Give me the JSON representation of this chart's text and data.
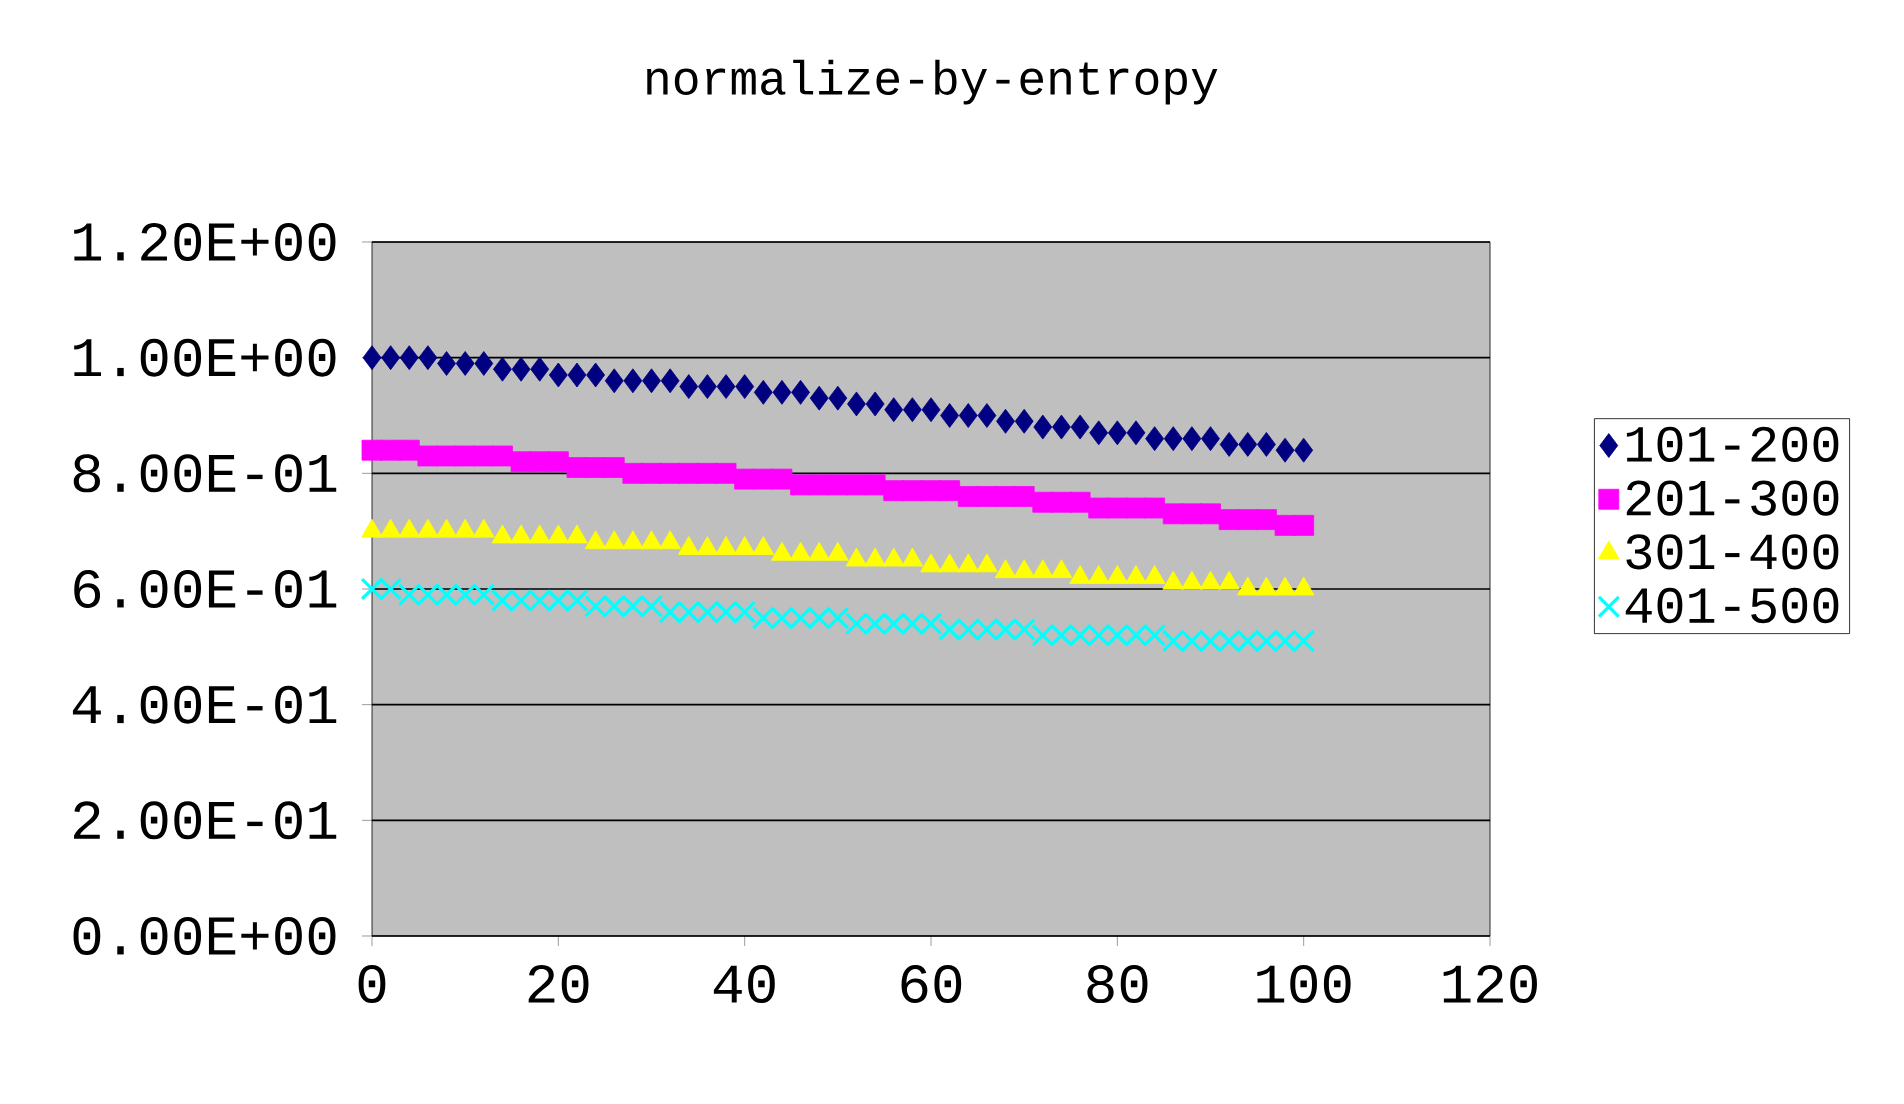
{
  "chart_data": {
    "type": "scatter",
    "title": "normalize-by-entropy",
    "x": [
      0,
      2,
      4,
      6,
      8,
      10,
      12,
      14,
      16,
      18,
      20,
      22,
      24,
      26,
      28,
      30,
      32,
      34,
      36,
      38,
      40,
      42,
      44,
      46,
      48,
      50,
      52,
      54,
      56,
      58,
      60,
      62,
      64,
      66,
      68,
      70,
      72,
      74,
      76,
      78,
      80,
      82,
      84,
      86,
      88,
      90,
      92,
      94,
      96,
      98,
      100
    ],
    "series": [
      {
        "name": "101-200",
        "color": "#000080",
        "marker": "diamond",
        "values": [
          1.0,
          1.0,
          1.0,
          1.0,
          0.99,
          0.99,
          0.99,
          0.98,
          0.98,
          0.98,
          0.97,
          0.97,
          0.97,
          0.96,
          0.96,
          0.96,
          0.96,
          0.95,
          0.95,
          0.95,
          0.95,
          0.94,
          0.94,
          0.94,
          0.93,
          0.93,
          0.92,
          0.92,
          0.91,
          0.91,
          0.91,
          0.9,
          0.9,
          0.9,
          0.89,
          0.89,
          0.88,
          0.88,
          0.88,
          0.87,
          0.87,
          0.87,
          0.86,
          0.86,
          0.86,
          0.86,
          0.85,
          0.85,
          0.85,
          0.84,
          0.84
        ]
      },
      {
        "name": "201-300",
        "color": "#ff00ff",
        "marker": "square",
        "values": [
          0.84,
          0.84,
          0.84,
          0.83,
          0.83,
          0.83,
          0.83,
          0.83,
          0.82,
          0.82,
          0.82,
          0.81,
          0.81,
          0.81,
          0.8,
          0.8,
          0.8,
          0.8,
          0.8,
          0.8,
          0.79,
          0.79,
          0.79,
          0.78,
          0.78,
          0.78,
          0.78,
          0.78,
          0.77,
          0.77,
          0.77,
          0.77,
          0.76,
          0.76,
          0.76,
          0.76,
          0.75,
          0.75,
          0.75,
          0.74,
          0.74,
          0.74,
          0.74,
          0.73,
          0.73,
          0.73,
          0.72,
          0.72,
          0.72,
          0.71,
          0.71
        ]
      },
      {
        "name": "301-400",
        "color": "#ffff00",
        "marker": "triangle",
        "values": [
          0.7,
          0.7,
          0.7,
          0.7,
          0.7,
          0.7,
          0.7,
          0.69,
          0.69,
          0.69,
          0.69,
          0.69,
          0.68,
          0.68,
          0.68,
          0.68,
          0.68,
          0.67,
          0.67,
          0.67,
          0.67,
          0.67,
          0.66,
          0.66,
          0.66,
          0.66,
          0.65,
          0.65,
          0.65,
          0.65,
          0.64,
          0.64,
          0.64,
          0.64,
          0.63,
          0.63,
          0.63,
          0.63,
          0.62,
          0.62,
          0.62,
          0.62,
          0.62,
          0.61,
          0.61,
          0.61,
          0.61,
          0.6,
          0.6,
          0.6,
          0.6
        ]
      },
      {
        "name": "401-500",
        "color": "#00ffff",
        "marker": "cross",
        "values": [
          0.6,
          0.6,
          0.59,
          0.59,
          0.59,
          0.59,
          0.59,
          0.58,
          0.58,
          0.58,
          0.58,
          0.58,
          0.57,
          0.57,
          0.57,
          0.57,
          0.56,
          0.56,
          0.56,
          0.56,
          0.56,
          0.55,
          0.55,
          0.55,
          0.55,
          0.55,
          0.54,
          0.54,
          0.54,
          0.54,
          0.54,
          0.53,
          0.53,
          0.53,
          0.53,
          0.53,
          0.52,
          0.52,
          0.52,
          0.52,
          0.52,
          0.52,
          0.52,
          0.51,
          0.51,
          0.51,
          0.51,
          0.51,
          0.51,
          0.51,
          0.51
        ]
      }
    ],
    "xlim": [
      0,
      120
    ],
    "xticks": [
      0,
      20,
      40,
      60,
      80,
      100,
      120
    ],
    "ylim": [
      0,
      1.2
    ],
    "yticks": [
      {
        "value": 0,
        "label": "0.00E+00"
      },
      {
        "value": 0.2,
        "label": "2.00E-01"
      },
      {
        "value": 0.4,
        "label": "4.00E-01"
      },
      {
        "value": 0.6,
        "label": "6.00E-01"
      },
      {
        "value": 0.8,
        "label": "8.00E-01"
      },
      {
        "value": 1.0,
        "label": "1.00E+00"
      },
      {
        "value": 1.2,
        "label": "1.20E+00"
      }
    ],
    "grid": "y",
    "legend": "right"
  }
}
